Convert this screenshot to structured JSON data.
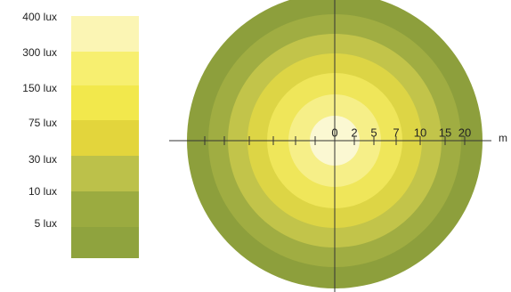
{
  "legend": {
    "labels": [
      "400 lux",
      "300 lux",
      "150 lux",
      "75 lux",
      "30 lux",
      "10 lux",
      "5 lux"
    ]
  },
  "scale": {
    "labels": [
      "0",
      "2",
      "5",
      "7",
      "10",
      "15",
      "20"
    ],
    "unit": "m"
  }
}
